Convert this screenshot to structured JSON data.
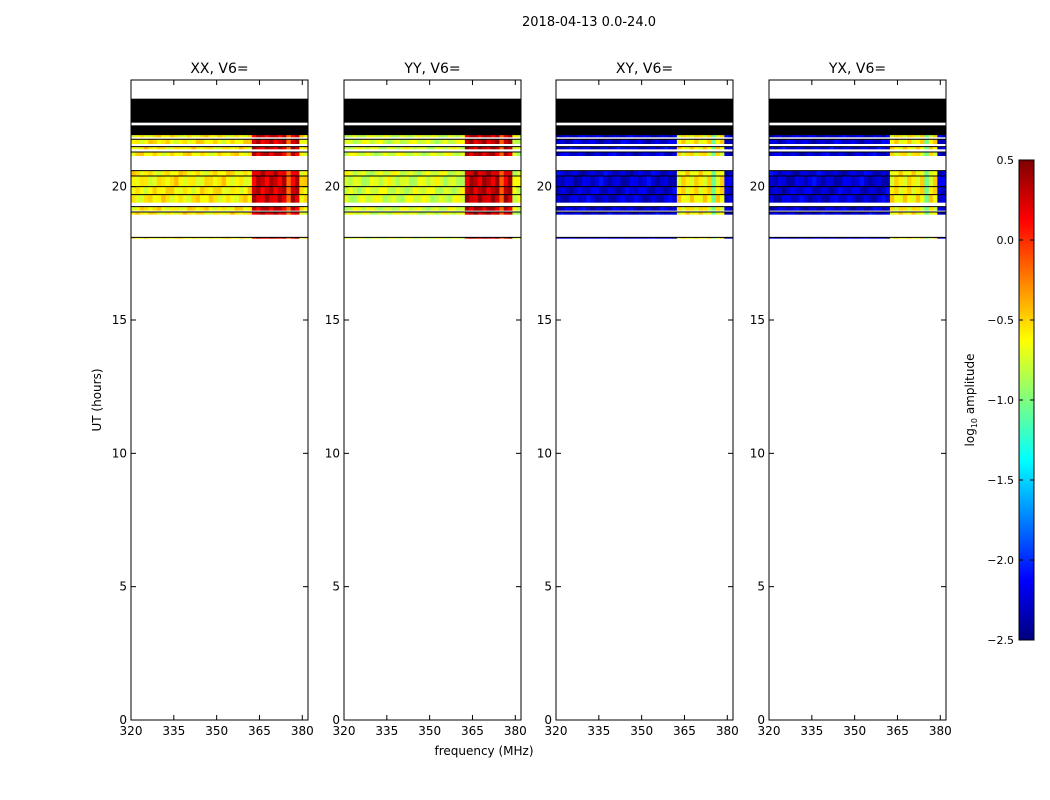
{
  "chart_data": {
    "type": "heatmap",
    "suptitle": "2018-04-13 0.0-24.0",
    "xlabel": "frequency (MHz)",
    "ylabel": "UT (hours)",
    "xlim": [
      320,
      382
    ],
    "ylim": [
      0,
      24
    ],
    "xticks": [
      320,
      335,
      350,
      365,
      380
    ],
    "yticks": [
      0,
      5,
      10,
      15,
      20
    ],
    "colorbar": {
      "label": "log10 amplitude",
      "range": [
        -2.5,
        0.5
      ],
      "ticks": [
        "0.5",
        "0.0",
        "−0.5",
        "−1.0",
        "−1.5",
        "−2.0",
        "−2.5"
      ],
      "tick_values": [
        0.5,
        0.0,
        -0.5,
        -1.0,
        -1.5,
        -2.0,
        -2.5
      ]
    },
    "time_rows_ut_hours": [
      {
        "t0": 22.4,
        "t1": 23.3,
        "state": "masked"
      },
      {
        "t0": 21.9,
        "t1": 22.3,
        "state": "masked"
      },
      {
        "t0": 21.85,
        "t1": 21.95,
        "state": "data"
      },
      {
        "t0": 21.6,
        "t1": 21.78,
        "state": "data"
      },
      {
        "t0": 21.4,
        "t1": 21.5,
        "state": "data"
      },
      {
        "t0": 21.15,
        "t1": 21.3,
        "state": "data"
      },
      {
        "t0": 20.4,
        "t1": 20.6,
        "state": "data"
      },
      {
        "t0": 20.0,
        "t1": 20.4,
        "state": "data"
      },
      {
        "t0": 19.7,
        "t1": 20.0,
        "state": "data"
      },
      {
        "t0": 19.4,
        "t1": 19.7,
        "state": "data"
      },
      {
        "t0": 19.1,
        "t1": 19.25,
        "state": "data"
      },
      {
        "t0": 18.95,
        "t1": 19.05,
        "state": "data"
      },
      {
        "t0": 18.05,
        "t1": 18.1,
        "state": "data"
      }
    ],
    "panels": [
      {
        "title": "XX, V6=",
        "base_log_amp": -0.6,
        "rfi_band_mhz": [
          363,
          379
        ],
        "rfi_log_amp": 0.25,
        "rfi_sub_bands": [
          [
            363,
            366.5
          ],
          [
            367.5,
            371
          ],
          [
            372,
            375
          ],
          [
            376,
            379
          ]
        ]
      },
      {
        "title": "YY, V6=",
        "base_log_amp": -0.75,
        "rfi_band_mhz": [
          363,
          379
        ],
        "rfi_log_amp": 0.3,
        "rfi_sub_bands": [
          [
            363,
            366.5
          ],
          [
            367.5,
            371
          ],
          [
            372,
            375
          ],
          [
            376,
            379
          ]
        ]
      },
      {
        "title": "XY, V6=",
        "base_log_amp": -2.25,
        "rfi_band_mhz": [
          363,
          379
        ],
        "rfi_log_amp": -0.6,
        "rfi_sub_bands": [
          [
            363,
            366.5
          ],
          [
            367.5,
            371
          ],
          [
            372,
            375
          ],
          [
            376,
            379
          ]
        ]
      },
      {
        "title": "YX, V6=",
        "base_log_amp": -2.25,
        "rfi_band_mhz": [
          363,
          379
        ],
        "rfi_log_amp": -0.6,
        "rfi_sub_bands": [
          [
            363,
            366.5
          ],
          [
            367.5,
            371
          ],
          [
            372,
            375
          ],
          [
            376,
            379
          ]
        ]
      }
    ]
  }
}
